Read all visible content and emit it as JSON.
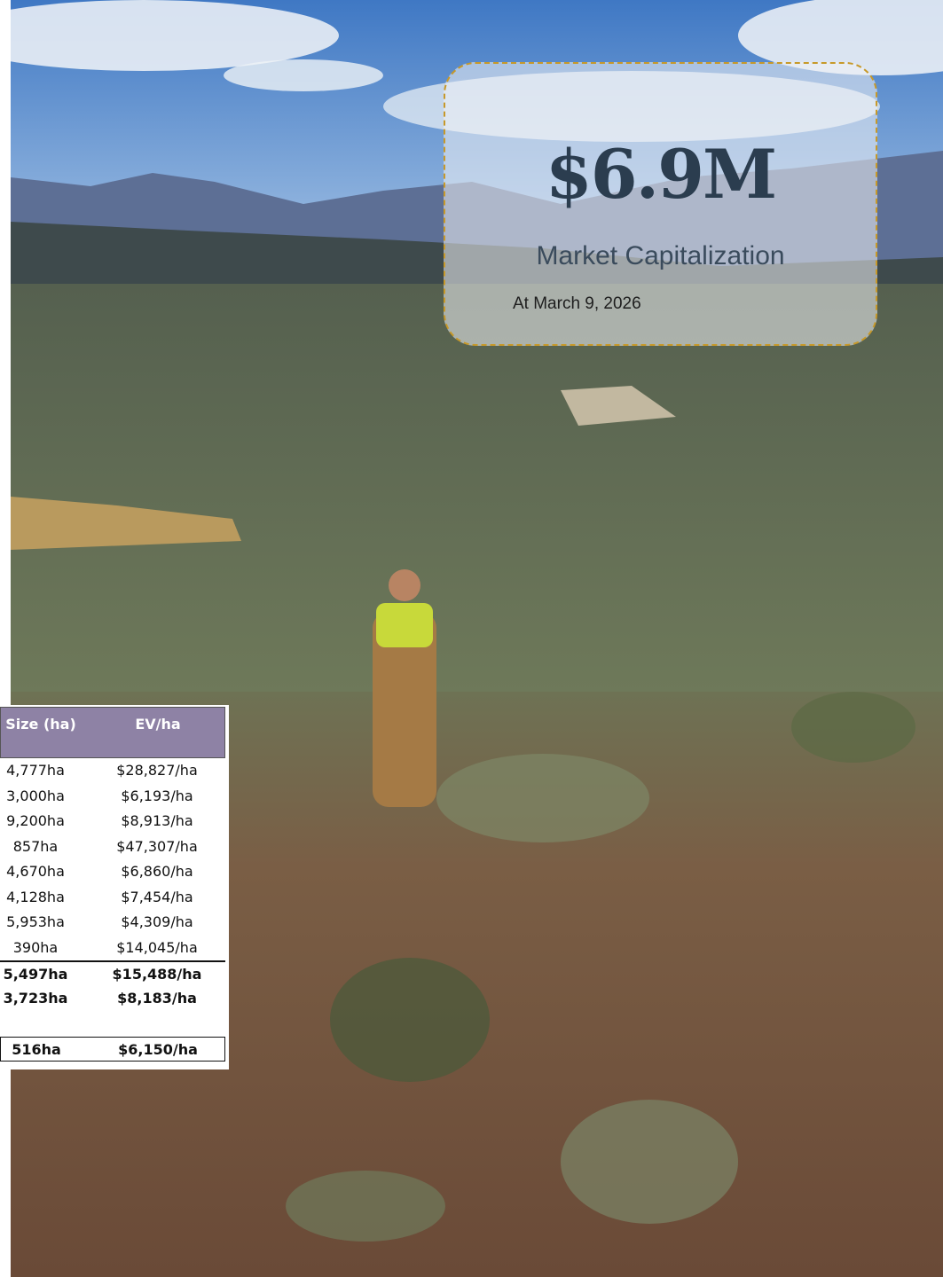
{
  "card": {
    "value": "$6.9M",
    "label": "Market Capitalization",
    "date": "At March 9, 2026"
  },
  "table": {
    "header": [
      "Size (ha)",
      "EV/ha"
    ],
    "rows": [
      [
        "4,777ha",
        "$28,827/ha"
      ],
      [
        "3,000ha",
        "$6,193/ha"
      ],
      [
        "9,200ha",
        "$8,913/ha"
      ],
      [
        "857ha",
        "$47,307/ha"
      ],
      [
        "4,670ha",
        "$6,860/ha"
      ],
      [
        "4,128ha",
        "$7,454/ha"
      ],
      [
        "5,953ha",
        "$4,309/ha"
      ],
      [
        "390ha",
        "$14,045/ha"
      ],
      [
        "5,497ha",
        "$15,488/ha"
      ],
      [
        "3,723ha",
        "$8,183/ha"
      ],
      [
        "516ha",
        "$6,150/ha"
      ]
    ]
  }
}
